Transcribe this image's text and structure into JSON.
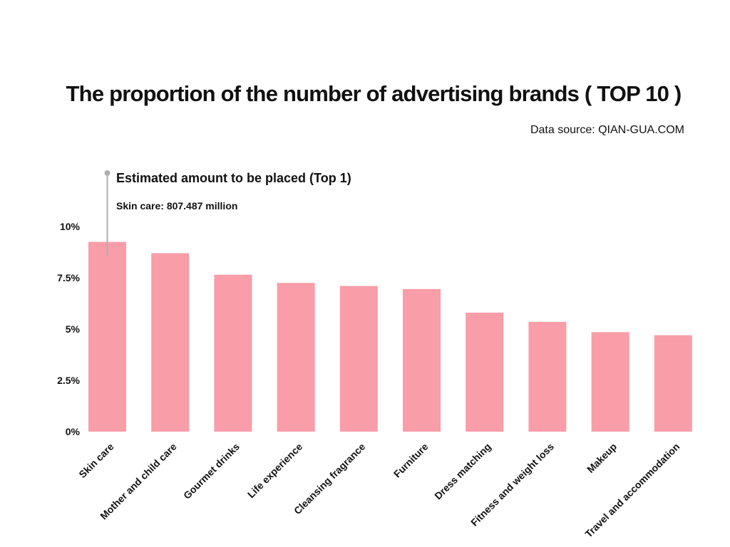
{
  "title": "The proportion of the number of advertising brands ( TOP 10 )",
  "source": "Data source: QIAN-GUA.COM",
  "annotation": {
    "title": "Estimated amount to be placed (Top 1)",
    "text": "Skin care: 807.487 million"
  },
  "colors": {
    "bar": "#f99da8",
    "marker": "#b0b0b0"
  },
  "chart_data": {
    "type": "bar",
    "categories": [
      "Skin care",
      "Mother and child care",
      "Gourmet drinks",
      "Life experience",
      "Cleansing fragrance",
      "Furniture",
      "Dress matching",
      "Fitness and weight loss",
      "Makeup",
      "Travel and accommodation"
    ],
    "values": [
      9.25,
      8.7,
      7.65,
      7.25,
      7.1,
      6.95,
      5.8,
      5.35,
      4.85,
      4.7
    ],
    "unit": "%",
    "ylim": [
      0,
      10
    ],
    "yticks": [
      0,
      2.5,
      5,
      7.5,
      10
    ],
    "ytick_labels": [
      "0%",
      "2.5%",
      "5%",
      "7.5%",
      "10%"
    ],
    "title": "The proportion of the number of advertising brands ( TOP 10 )",
    "xlabel": "",
    "ylabel": "",
    "grid": false,
    "legend": "none"
  }
}
